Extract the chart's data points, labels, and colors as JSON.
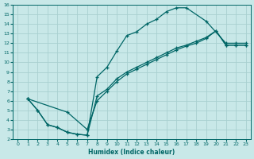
{
  "xlabel": "Humidex (Indice chaleur)",
  "bg_color": "#c8e8e8",
  "grid_color": "#a8d0d0",
  "line_color": "#006666",
  "xlim": [
    -0.5,
    23.5
  ],
  "ylim": [
    2,
    16
  ],
  "xticks": [
    0,
    1,
    2,
    3,
    4,
    5,
    6,
    7,
    8,
    9,
    10,
    11,
    12,
    13,
    14,
    15,
    16,
    17,
    18,
    19,
    20,
    21,
    22,
    23
  ],
  "yticks": [
    2,
    3,
    4,
    5,
    6,
    7,
    8,
    9,
    10,
    11,
    12,
    13,
    14,
    15,
    16
  ],
  "curve1_x": [
    1,
    2,
    3,
    4,
    5,
    6,
    7,
    8,
    9,
    10,
    11,
    12,
    13,
    14,
    15,
    16,
    17,
    19,
    21,
    22,
    23
  ],
  "curve1_y": [
    6.2,
    5.0,
    3.5,
    3.2,
    2.7,
    2.5,
    2.4,
    8.5,
    9.5,
    11.2,
    12.8,
    13.2,
    14.0,
    14.5,
    15.3,
    15.7,
    15.7,
    14.3,
    12.0,
    12.0,
    12.0
  ],
  "curve2_x": [
    1,
    2,
    3,
    4,
    5,
    6,
    7,
    8,
    9,
    10,
    11,
    12,
    13,
    14,
    15,
    16,
    17,
    18,
    19,
    20,
    21,
    22,
    23
  ],
  "curve2_y": [
    6.2,
    5.0,
    3.5,
    3.2,
    2.7,
    2.5,
    2.4,
    6.5,
    7.2,
    8.3,
    9.0,
    9.5,
    10.0,
    10.5,
    11.0,
    11.5,
    11.8,
    12.2,
    12.6,
    13.3,
    11.8,
    11.8,
    11.8
  ],
  "curve3_x": [
    1,
    5,
    7,
    8,
    9,
    10,
    11,
    12,
    13,
    14,
    15,
    16,
    17,
    18,
    19,
    20,
    21,
    22,
    23
  ],
  "curve3_y": [
    6.2,
    4.8,
    3.0,
    6.0,
    7.0,
    8.0,
    8.8,
    9.3,
    9.8,
    10.3,
    10.8,
    11.3,
    11.7,
    12.0,
    12.5,
    13.3,
    11.8,
    11.8,
    11.8
  ]
}
